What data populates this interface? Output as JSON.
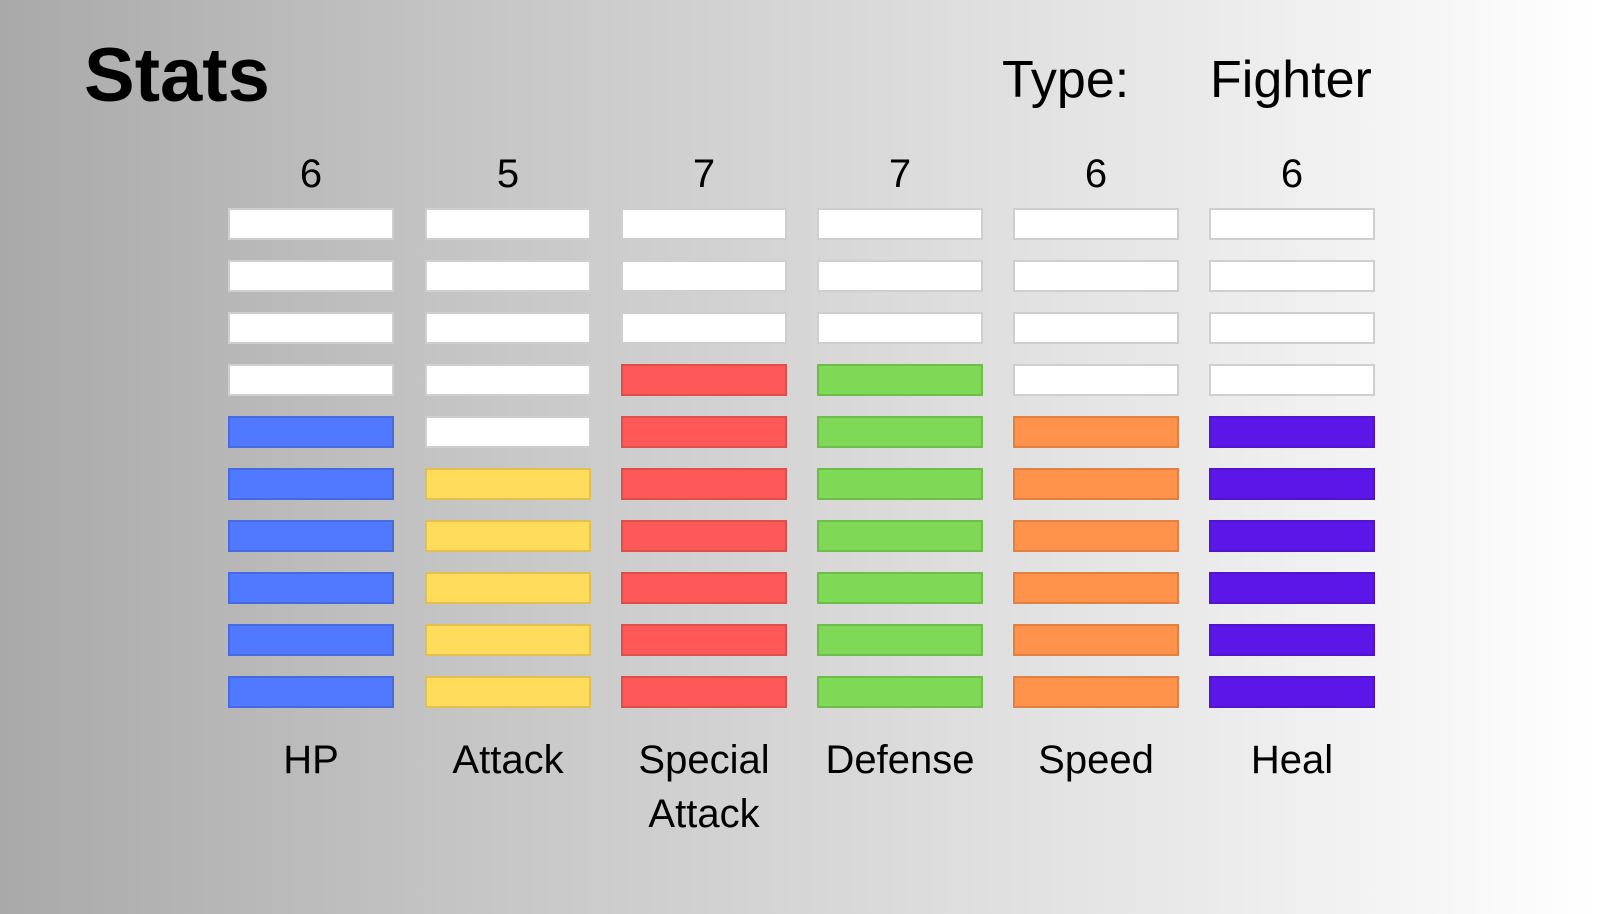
{
  "header": {
    "title": "Stats",
    "type_label": "Type:",
    "type_value": "Fighter"
  },
  "max_level": 10,
  "empty_color": "#ffffff",
  "stats": [
    {
      "key": "hp",
      "name": "HP",
      "value": 6,
      "color": "#5079ff"
    },
    {
      "key": "attack",
      "name": "Attack",
      "value": 5,
      "color": "#ffdc5c"
    },
    {
      "key": "special-attack",
      "name": "Special Attack",
      "value": 7,
      "color": "#ff5858"
    },
    {
      "key": "defense",
      "name": "Defense",
      "value": 7,
      "color": "#7fd957"
    },
    {
      "key": "speed",
      "name": "Speed",
      "value": 6,
      "color": "#ff934c"
    },
    {
      "key": "heal",
      "name": "Heal",
      "value": 6,
      "color": "#5a17e7"
    }
  ]
}
